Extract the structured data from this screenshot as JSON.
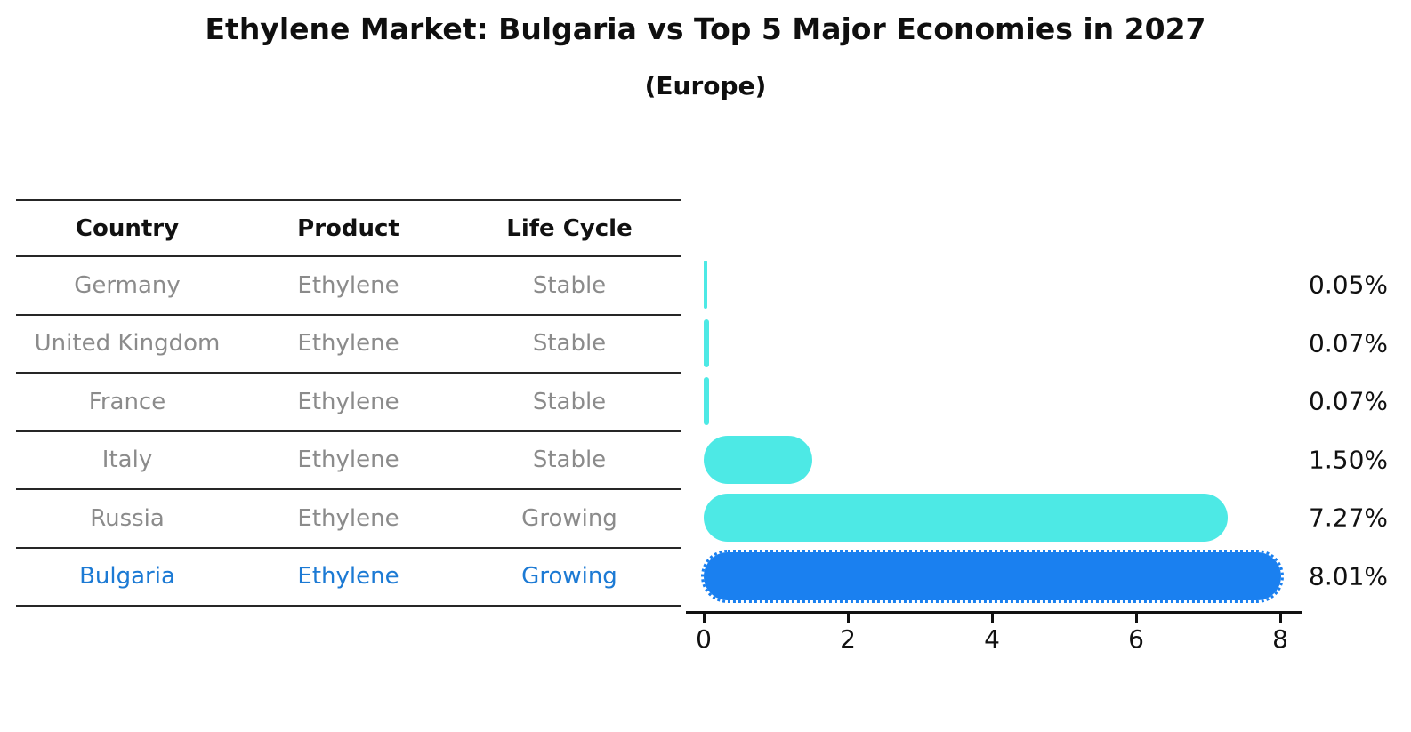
{
  "title": "Ethylene Market: Bulgaria vs Top 5 Major Economies in 2027",
  "subtitle": "(Europe)",
  "table": {
    "headers": [
      "Country",
      "Product",
      "Life Cycle"
    ],
    "rows": [
      {
        "country": "Germany",
        "product": "Ethylene",
        "life_cycle": "Stable",
        "highlight": false
      },
      {
        "country": "United Kingdom",
        "product": "Ethylene",
        "life_cycle": "Stable",
        "highlight": false
      },
      {
        "country": "France",
        "product": "Ethylene",
        "life_cycle": "Stable",
        "highlight": false
      },
      {
        "country": "Italy",
        "product": "Ethylene",
        "life_cycle": "Stable",
        "highlight": false
      },
      {
        "country": "Russia",
        "product": "Ethylene",
        "life_cycle": "Growing",
        "highlight": false
      },
      {
        "country": "Bulgaria",
        "product": "Ethylene",
        "life_cycle": "Growing",
        "highlight": true
      }
    ]
  },
  "chart_data": {
    "type": "bar",
    "orientation": "horizontal",
    "title": "Ethylene Market: Bulgaria vs Top 5 Major Economies in 2027",
    "subtitle": "(Europe)",
    "categories": [
      "Germany",
      "United Kingdom",
      "France",
      "Italy",
      "Russia",
      "Bulgaria"
    ],
    "values": [
      0.05,
      0.07,
      0.07,
      1.5,
      7.27,
      8.01
    ],
    "value_labels": [
      "0.05%",
      "0.07%",
      "0.07%",
      "1.50%",
      "7.27%",
      "8.01%"
    ],
    "x_ticks": [
      0,
      2,
      4,
      6,
      8
    ],
    "xlim": [
      0,
      8.5
    ],
    "grid": false,
    "legend": "none",
    "bar_color": "#4DE9E5",
    "highlight_bar_color": "#1A80F0",
    "highlight_border_color": "#1A80F0",
    "highlight_index": 5,
    "highlight_text_color": "#1C7AD4",
    "table_text_color": "#8b8b8b",
    "axis_color": "#111111"
  }
}
